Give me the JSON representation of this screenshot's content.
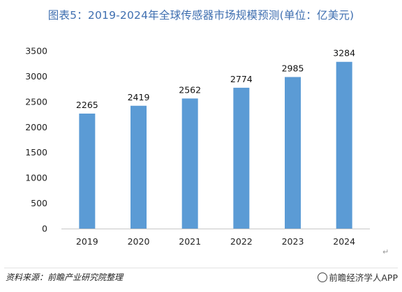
{
  "chart_data": {
    "type": "bar",
    "title": "图表5：2019-2024年全球传感器市场规模预测(单位：亿美元)",
    "categories": [
      "2019",
      "2020",
      "2021",
      "2022",
      "2023",
      "2024"
    ],
    "values": [
      2265,
      2419,
      2562,
      2774,
      2985,
      3284
    ],
    "yticks": [
      0,
      500,
      1000,
      1500,
      2000,
      2500,
      3000,
      3500
    ],
    "ylim": [
      0,
      3500
    ],
    "xlabel": "",
    "ylabel": "",
    "grid": false,
    "bar_color": "#5b9bd5"
  },
  "footer": {
    "source": "资料来源：前瞻产业研究院整理",
    "brand": "前瞻经济学人APP",
    "return_mark": "↵"
  }
}
